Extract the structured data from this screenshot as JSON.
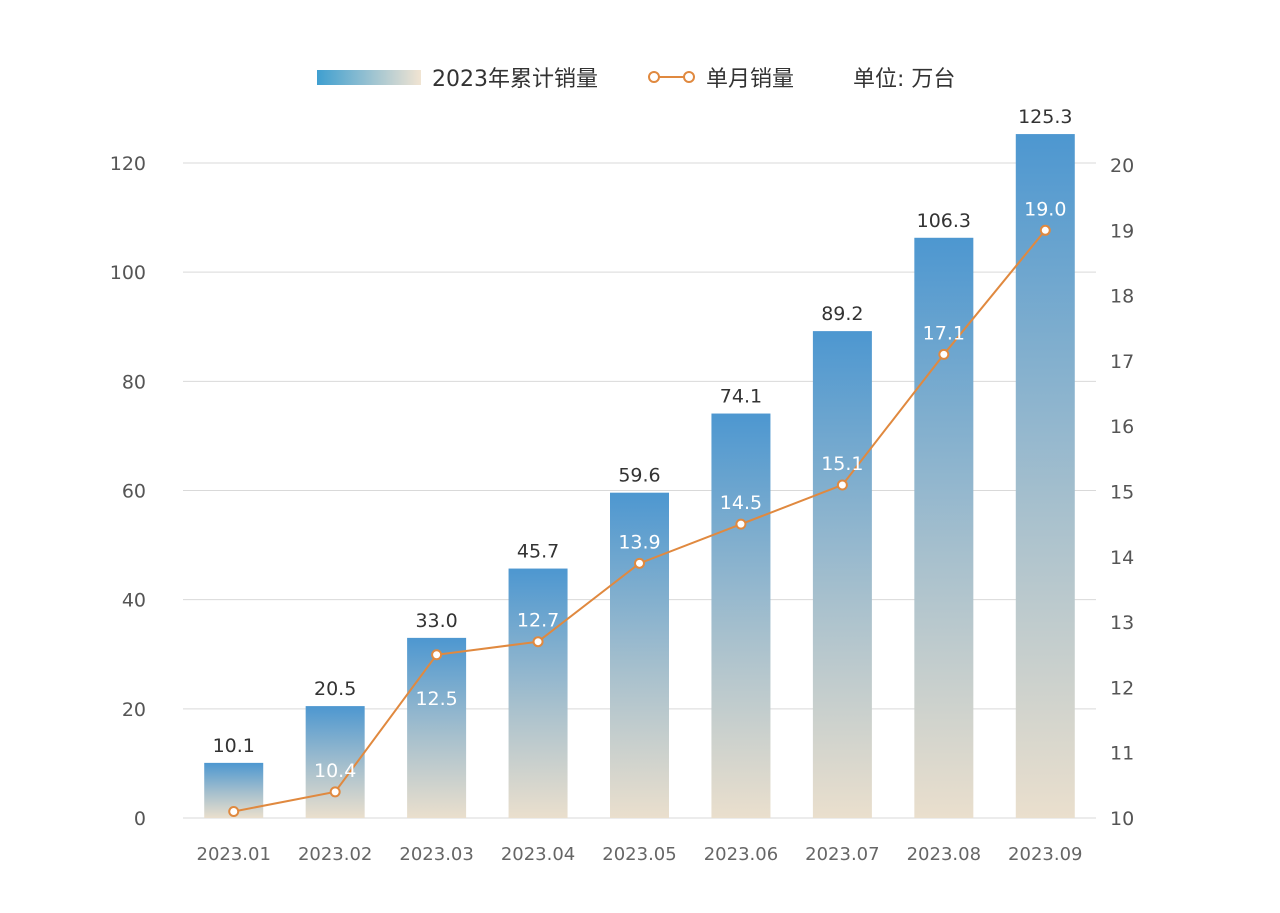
{
  "chart_data": {
    "type": "bar+line",
    "categories": [
      "2023.01",
      "2023.02",
      "2023.03",
      "2023.04",
      "2023.05",
      "2023.06",
      "2023.07",
      "2023.08",
      "2023.09"
    ],
    "series": [
      {
        "name": "2023年累计销量",
        "type": "bar",
        "axis": "left",
        "values": [
          10.1,
          20.5,
          33.0,
          45.7,
          59.6,
          74.1,
          89.2,
          106.3,
          125.3
        ],
        "labels": [
          "10.1",
          "20.5",
          "33.0",
          "45.7",
          "59.6",
          "74.1",
          "89.2",
          "106.3",
          "125.3"
        ]
      },
      {
        "name": "单月销量",
        "type": "line",
        "axis": "right",
        "values": [
          10.1,
          10.4,
          12.5,
          12.7,
          13.9,
          14.5,
          15.1,
          17.1,
          19.0
        ],
        "labels": [
          "",
          "10.4",
          "12.5",
          "12.7",
          "13.9",
          "14.5",
          "15.1",
          "17.1",
          "19.0"
        ]
      }
    ],
    "unit_label": "单位: 万台",
    "y_left": {
      "min": 0,
      "max": 120,
      "ticks": [
        "0",
        "20",
        "40",
        "60",
        "80",
        "100",
        "120"
      ]
    },
    "y_right": {
      "min": 10,
      "max": 20,
      "ticks": [
        "10",
        "11",
        "12",
        "13",
        "14",
        "15",
        "16",
        "17",
        "18",
        "19",
        "20"
      ]
    },
    "grid": true,
    "legend_position": "top-center",
    "colors": {
      "bar_top": "#4d97d0",
      "bar_bottom": "#eadfcd",
      "line": "#e0893f",
      "marker_fill": "#ffffff",
      "grid": "#d9d9d9"
    }
  }
}
